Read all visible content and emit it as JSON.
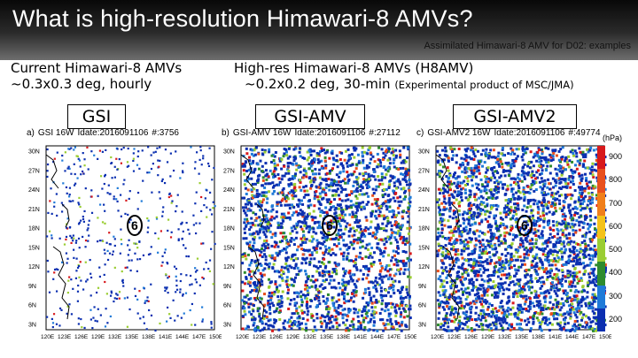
{
  "slide": {
    "title": "What is high-resolution Himawari-8 AMVs?",
    "caption": "Assimilated Himawari-8 AMV for D02: examples"
  },
  "left_description": {
    "line1": "Current Himawari-8 AMVs",
    "line2": "~0.3x0.3 deg, hourly"
  },
  "right_description": {
    "line1": "High-res Himawari-8 AMVs (H8AMV)",
    "line2": "~0.2x0.2 deg, 30-min",
    "note": "(Experimental product of MSC/JMA)"
  },
  "panels": [
    {
      "label": "GSI",
      "prefix": "a)",
      "name": "GSI 16W",
      "idate": "Idate:2016091106",
      "count": "#:3756"
    },
    {
      "label": "GSI-AMV",
      "prefix": "b)",
      "name": "GSI-AMV 16W",
      "idate": "Idate:2016091106",
      "count": "#:27112"
    },
    {
      "label": "GSI-AMV2",
      "prefix": "c)",
      "name": "GSI-AMV2 16W",
      "idate": "Idate:2016091106",
      "count": "#:49774"
    }
  ],
  "axes": {
    "lat_ticks": [
      "30N",
      "27N",
      "24N",
      "21N",
      "18N",
      "15N",
      "12N",
      "9N",
      "6N",
      "3N"
    ],
    "lon_ticks": [
      "120E",
      "123E",
      "126E",
      "129E",
      "132E",
      "135E",
      "138E",
      "141E",
      "144E",
      "147E",
      "150E"
    ]
  },
  "legend": {
    "unit": "(hPa)",
    "levels": [
      "900",
      "800",
      "700",
      "600",
      "500",
      "400",
      "300",
      "200"
    ],
    "colors": [
      "#d7191c",
      "#e8501e",
      "#f07f1b",
      "#f4c21a",
      "#9acd32",
      "#2e8b2e",
      "#1f7ad8",
      "#0b2fb0"
    ]
  },
  "typhoon_marker": "6"
}
